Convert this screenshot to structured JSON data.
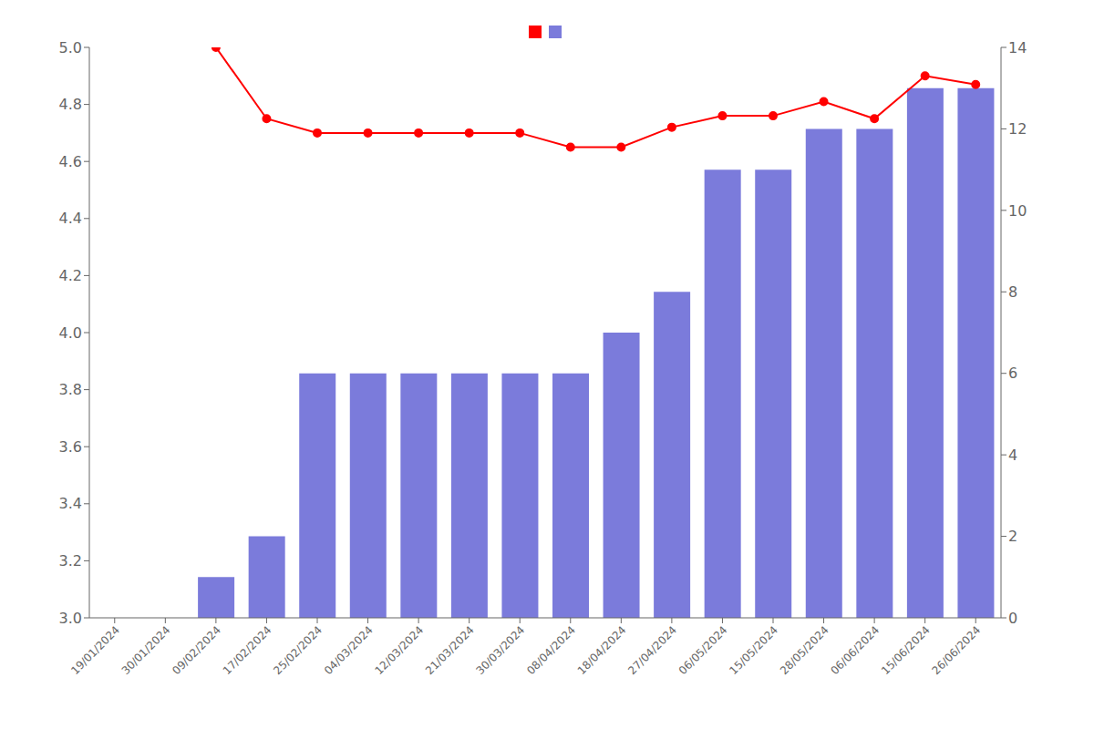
{
  "chart_data": {
    "type": "bar",
    "categories": [
      "19/01/2024",
      "30/01/2024",
      "09/02/2024",
      "17/02/2024",
      "25/02/2024",
      "04/03/2024",
      "12/03/2024",
      "21/03/2024",
      "30/03/2024",
      "08/04/2024",
      "18/04/2024",
      "27/04/2024",
      "06/05/2024",
      "15/05/2024",
      "28/05/2024",
      "06/06/2024",
      "15/06/2024",
      "26/06/2024"
    ],
    "series": [
      {
        "type": "line",
        "color": "#ff0000",
        "marker": "circle",
        "axis": "y",
        "values": [
          null,
          null,
          5.0,
          4.75,
          4.7,
          4.7,
          4.7,
          4.7,
          4.7,
          4.65,
          4.65,
          4.72,
          4.76,
          4.76,
          4.81,
          4.75,
          4.9,
          4.87
        ]
      },
      {
        "type": "bar",
        "color": "#7b7bdb",
        "axis": "y2",
        "values": [
          0,
          0,
          1,
          2,
          6,
          6,
          6,
          6,
          6,
          6,
          7,
          8,
          11,
          11,
          12,
          12,
          13,
          13
        ]
      }
    ],
    "ylim": [
      3.0,
      5.0
    ],
    "yticks": [
      {
        "value": 3.0,
        "label": "3.0"
      },
      3.2,
      3.4,
      3.6,
      3.8,
      {
        "value": 4.0,
        "label": "4.0"
      },
      4.2,
      4.4,
      4.6,
      4.8,
      {
        "value": 5.0,
        "label": "5.0"
      }
    ],
    "y2lim": [
      0,
      14
    ],
    "y2ticks": [
      0,
      2,
      4,
      6,
      8,
      10,
      12,
      14
    ],
    "grid": false,
    "legend": "top"
  }
}
